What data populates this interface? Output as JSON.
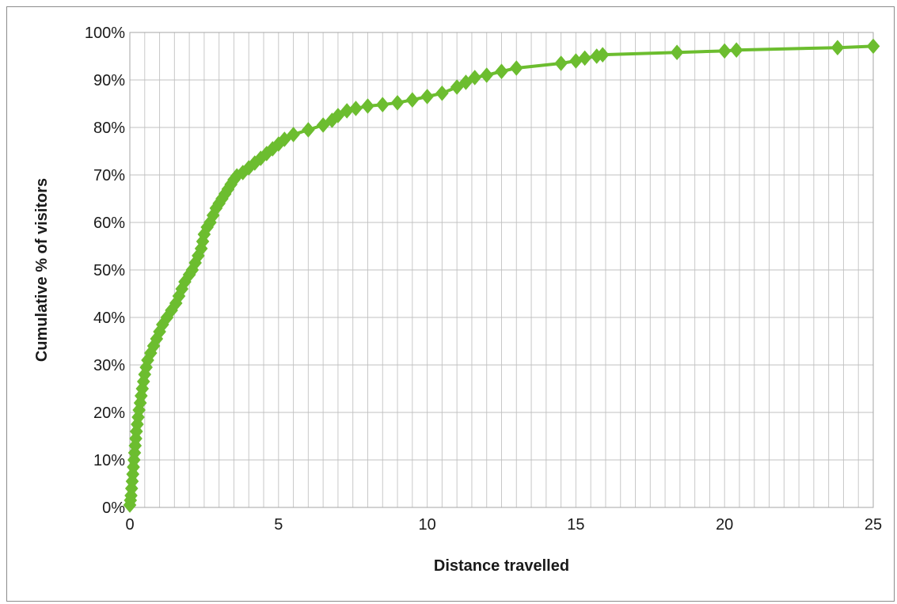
{
  "chart_data": {
    "type": "line",
    "xlabel": "Distance travelled",
    "ylabel": "Cumulative % of visitors",
    "xlim": [
      0,
      25
    ],
    "ylim": [
      0,
      100
    ],
    "x_ticks": [
      0,
      5,
      10,
      15,
      20,
      25
    ],
    "x_tick_labels": [
      "0",
      "5",
      "10",
      "15",
      "20",
      "25"
    ],
    "y_ticks": [
      0,
      10,
      20,
      30,
      40,
      50,
      60,
      70,
      80,
      90,
      100
    ],
    "y_tick_labels": [
      "0%",
      "10%",
      "20%",
      "30%",
      "40%",
      "50%",
      "60%",
      "70%",
      "80%",
      "90%",
      "100%"
    ],
    "grid": true,
    "marker": "diamond",
    "series_color": "#6cbd2f",
    "series": [
      {
        "points": [
          [
            0.0,
            0.5
          ],
          [
            0.02,
            1.5
          ],
          [
            0.04,
            2.5
          ],
          [
            0.06,
            4.0
          ],
          [
            0.08,
            5.5
          ],
          [
            0.1,
            7.0
          ],
          [
            0.12,
            8.5
          ],
          [
            0.14,
            10.0
          ],
          [
            0.16,
            11.5
          ],
          [
            0.18,
            13.0
          ],
          [
            0.2,
            14.5
          ],
          [
            0.22,
            16.0
          ],
          [
            0.25,
            17.5
          ],
          [
            0.28,
            19.0
          ],
          [
            0.31,
            20.5
          ],
          [
            0.35,
            22.0
          ],
          [
            0.38,
            23.5
          ],
          [
            0.42,
            25.0
          ],
          [
            0.46,
            26.5
          ],
          [
            0.5,
            28.0
          ],
          [
            0.55,
            29.5
          ],
          [
            0.6,
            31.0
          ],
          [
            0.7,
            32.5
          ],
          [
            0.8,
            34.0
          ],
          [
            0.9,
            35.5
          ],
          [
            1.0,
            37.0
          ],
          [
            1.1,
            38.5
          ],
          [
            1.25,
            40.0
          ],
          [
            1.4,
            41.5
          ],
          [
            1.55,
            43.0
          ],
          [
            1.65,
            44.5
          ],
          [
            1.75,
            46.0
          ],
          [
            1.85,
            47.5
          ],
          [
            2.0,
            49.0
          ],
          [
            2.1,
            50.0
          ],
          [
            2.2,
            51.5
          ],
          [
            2.3,
            53.0
          ],
          [
            2.4,
            54.5
          ],
          [
            2.45,
            56.0
          ],
          [
            2.5,
            57.5
          ],
          [
            2.6,
            59.0
          ],
          [
            2.7,
            60.0
          ],
          [
            2.8,
            61.5
          ],
          [
            2.9,
            63.0
          ],
          [
            3.0,
            64.0
          ],
          [
            3.1,
            65.0
          ],
          [
            3.2,
            66.0
          ],
          [
            3.3,
            67.0
          ],
          [
            3.4,
            68.0
          ],
          [
            3.5,
            69.0
          ],
          [
            3.6,
            69.8
          ],
          [
            3.8,
            70.5
          ],
          [
            4.0,
            71.5
          ],
          [
            4.2,
            72.5
          ],
          [
            4.4,
            73.5
          ],
          [
            4.6,
            74.5
          ],
          [
            4.8,
            75.5
          ],
          [
            5.0,
            76.5
          ],
          [
            5.2,
            77.5
          ],
          [
            5.5,
            78.5
          ],
          [
            6.0,
            79.5
          ],
          [
            6.5,
            80.5
          ],
          [
            6.8,
            81.5
          ],
          [
            7.0,
            82.5
          ],
          [
            7.3,
            83.5
          ],
          [
            7.6,
            84.0
          ],
          [
            8.0,
            84.5
          ],
          [
            8.5,
            84.8
          ],
          [
            9.0,
            85.2
          ],
          [
            9.5,
            85.8
          ],
          [
            10.0,
            86.5
          ],
          [
            10.5,
            87.2
          ],
          [
            11.0,
            88.5
          ],
          [
            11.3,
            89.5
          ],
          [
            11.6,
            90.5
          ],
          [
            12.0,
            91.0
          ],
          [
            12.5,
            91.8
          ],
          [
            13.0,
            92.5
          ],
          [
            14.5,
            93.5
          ],
          [
            15.0,
            94.0
          ],
          [
            15.3,
            94.6
          ],
          [
            15.7,
            95.0
          ],
          [
            15.9,
            95.3
          ],
          [
            18.4,
            95.8
          ],
          [
            20.0,
            96.1
          ],
          [
            20.4,
            96.3
          ],
          [
            23.8,
            96.8
          ],
          [
            25.0,
            97.1
          ]
        ]
      }
    ]
  }
}
